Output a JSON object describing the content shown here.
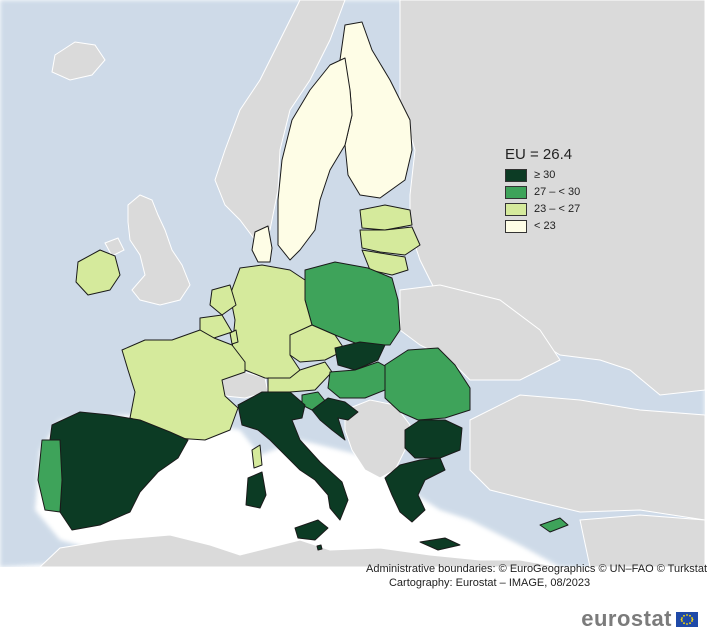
{
  "legend": {
    "title": "EU = 26.4",
    "items": [
      {
        "label": "≥ 30",
        "color": "#0c3b24"
      },
      {
        "label": "27 – < 30",
        "color": "#3ea35a"
      },
      {
        "label": "23 – < 27",
        "color": "#d5ea9c"
      },
      {
        "label": "< 23",
        "color": "#fefde6"
      }
    ]
  },
  "credits": {
    "line1": "Administrative boundaries: © EuroGeographics © UN–FAO © Turkstat",
    "line2": "Cartography: Eurostat – IMAGE, 08/2023"
  },
  "logo": {
    "text": "eurostat"
  },
  "colors": {
    "sea": "#ffffff",
    "non_eu": "#dadada",
    "border": "#1a1a1a",
    "eu_flag": "#1f4aa8"
  }
}
